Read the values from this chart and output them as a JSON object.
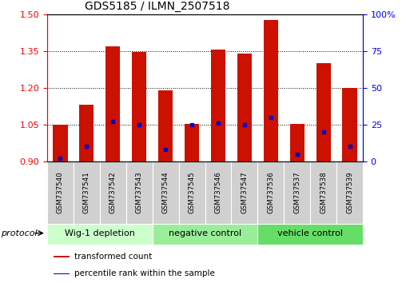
{
  "title": "GDS5185 / ILMN_2507518",
  "samples": [
    "GSM737540",
    "GSM737541",
    "GSM737542",
    "GSM737543",
    "GSM737544",
    "GSM737545",
    "GSM737546",
    "GSM737547",
    "GSM737536",
    "GSM737537",
    "GSM737538",
    "GSM737539"
  ],
  "transformed_counts": [
    1.05,
    1.13,
    1.37,
    1.345,
    1.19,
    1.053,
    1.355,
    1.34,
    1.475,
    1.053,
    1.3,
    1.2
  ],
  "percentile_ranks": [
    2,
    10,
    27,
    25,
    8,
    25,
    26,
    25,
    30,
    5,
    20,
    10
  ],
  "bar_bottom": 0.9,
  "ylim_left": [
    0.9,
    1.5
  ],
  "ylim_right": [
    0,
    100
  ],
  "yticks_left": [
    0.9,
    1.05,
    1.2,
    1.35,
    1.5
  ],
  "yticks_right": [
    0,
    25,
    50,
    75,
    100
  ],
  "bar_color": "#cc1100",
  "dot_color": "#0000cc",
  "groups": [
    {
      "label": "Wig-1 depletion",
      "start": 0,
      "end": 4,
      "color": "#ccffcc"
    },
    {
      "label": "negative control",
      "start": 4,
      "end": 8,
      "color": "#99ee99"
    },
    {
      "label": "vehicle control",
      "start": 8,
      "end": 12,
      "color": "#66dd66"
    }
  ],
  "protocol_label": "protocol",
  "legend_items": [
    {
      "color": "#cc1100",
      "label": "transformed count"
    },
    {
      "color": "#0000cc",
      "label": "percentile rank within the sample"
    }
  ],
  "sample_bg": "#d0d0d0",
  "plot_bg": "white"
}
